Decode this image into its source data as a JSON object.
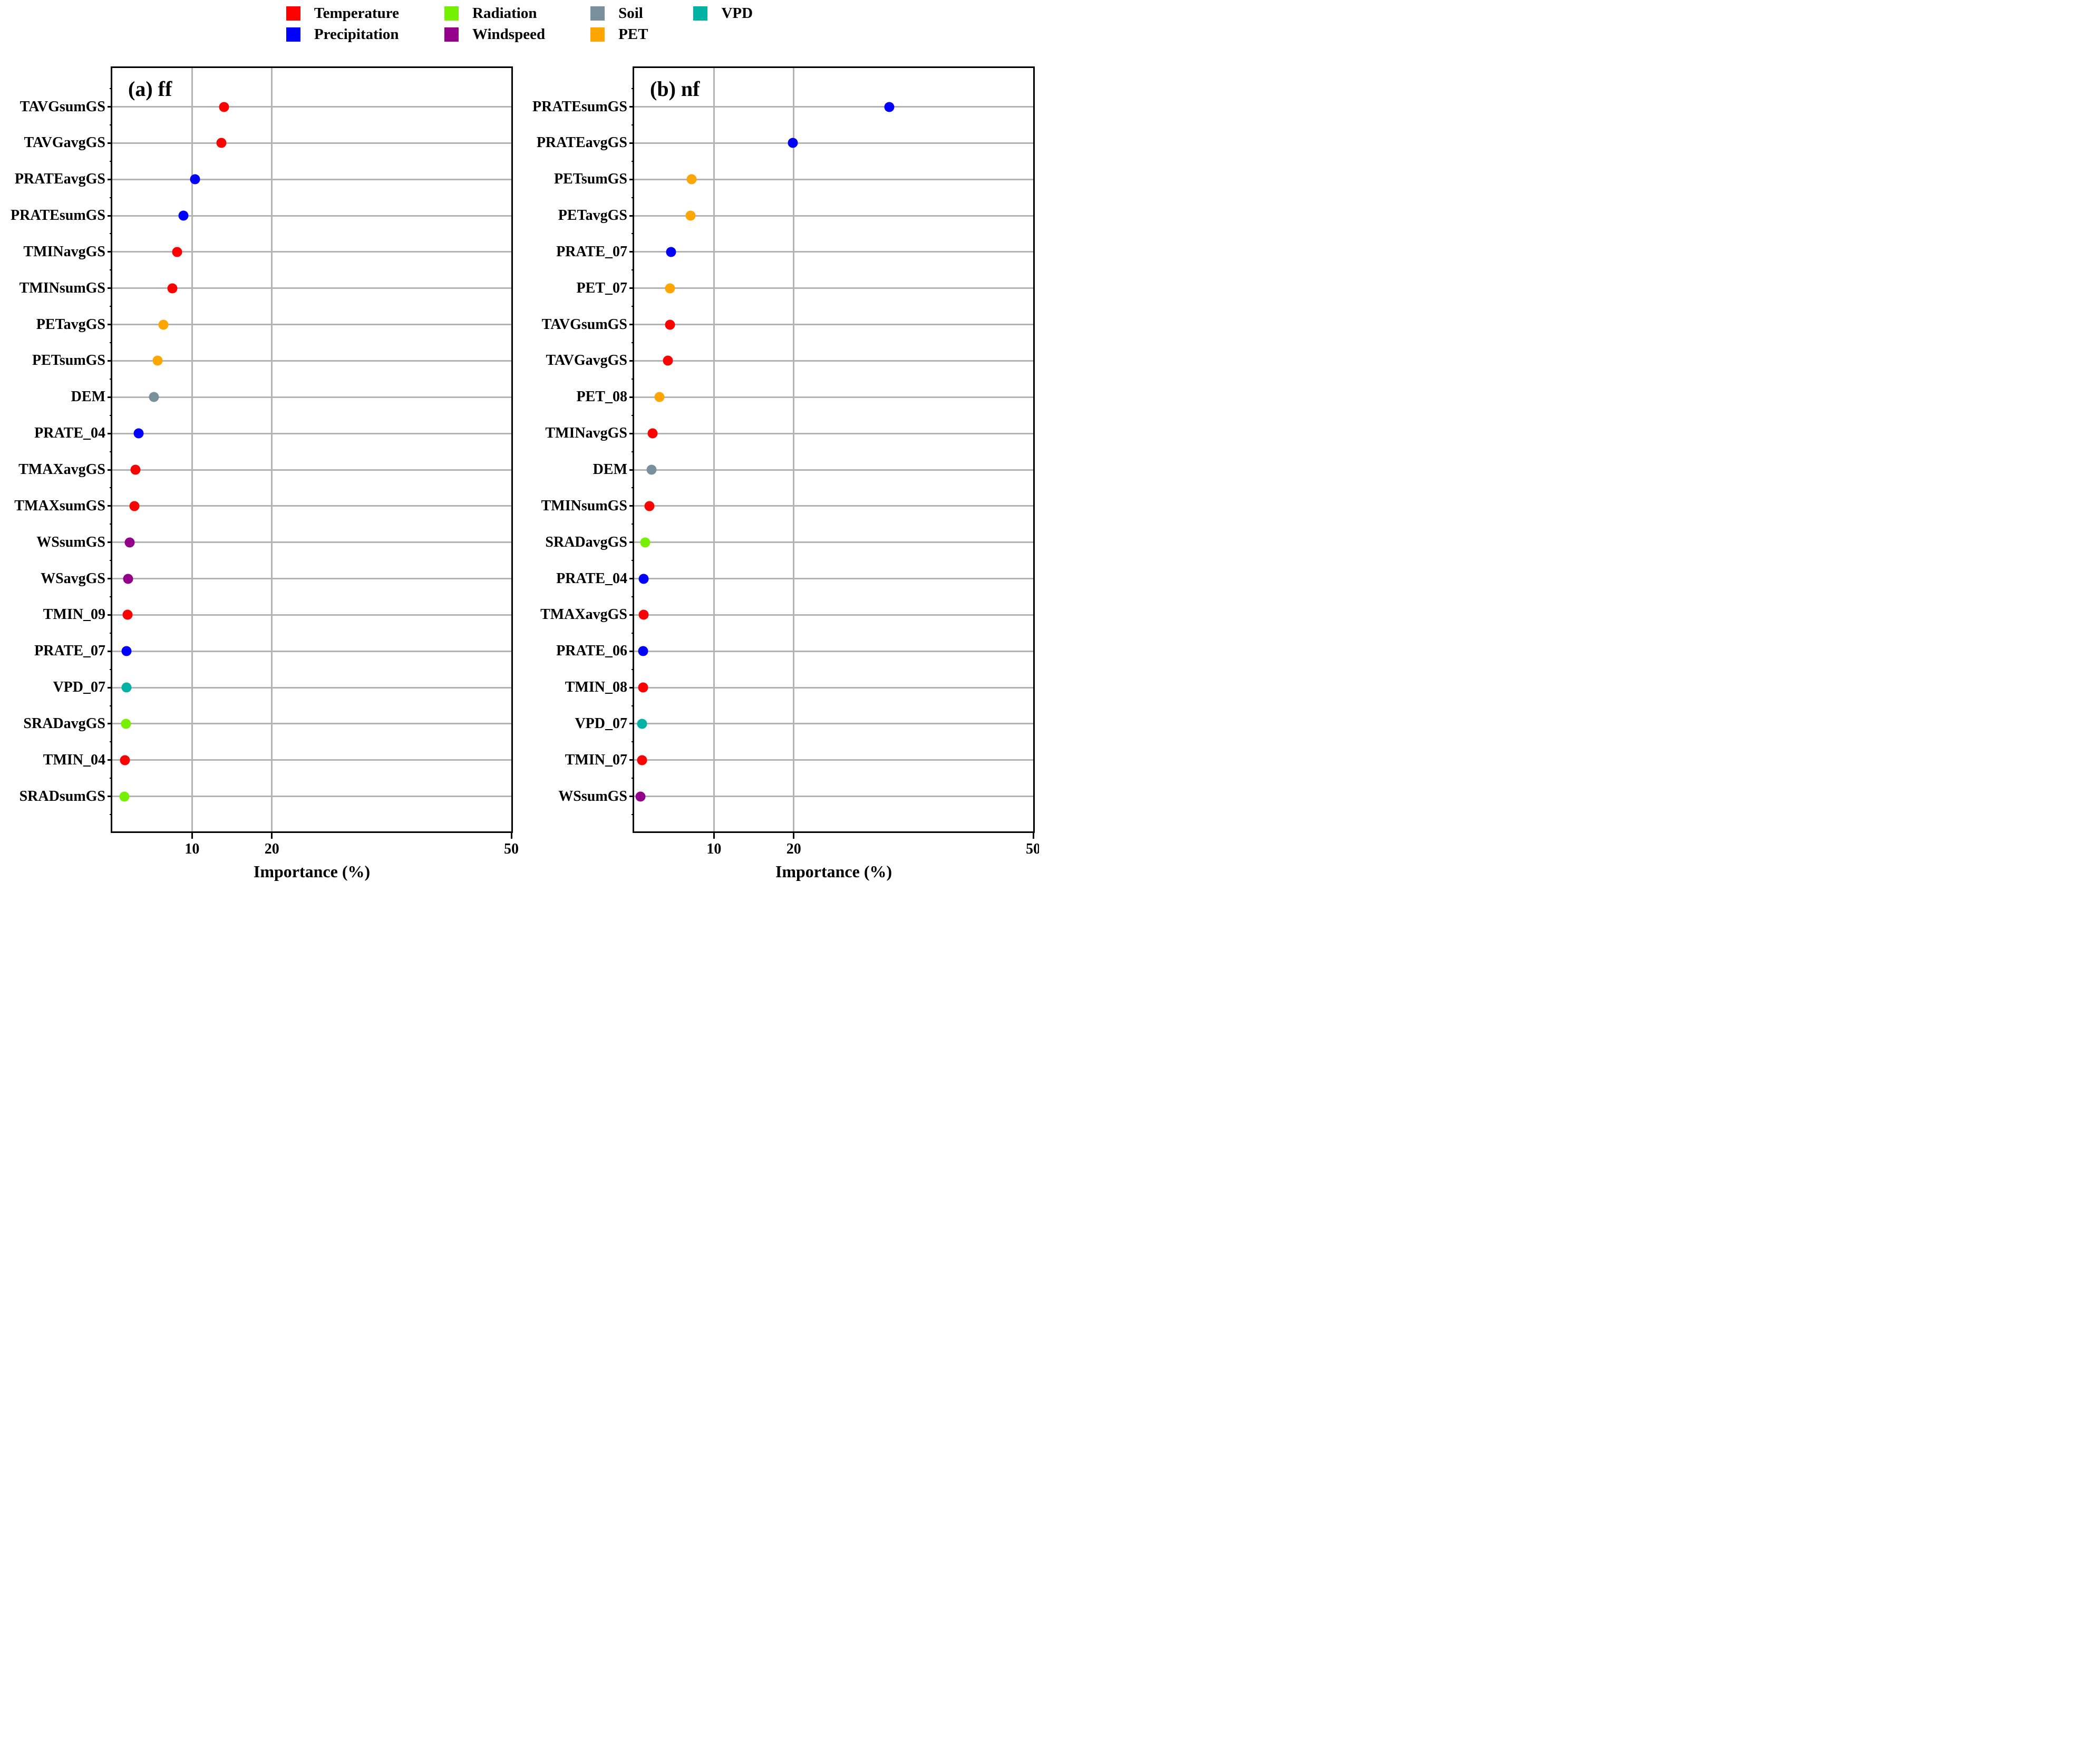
{
  "groups": {
    "Temperature": "#FF0000",
    "Precipitation": "#0000FF",
    "Radiation": "#74F000",
    "Windspeed": "#94008A",
    "Soil": "#78909C",
    "PET": "#FFA500",
    "VPD": "#00B2A2"
  },
  "gridline_color": "#B3B3B3",
  "legend": {
    "position": "top",
    "columns": [
      [
        "Temperature",
        "Precipitation"
      ],
      [
        "Radiation",
        "Windspeed"
      ],
      [
        "Soil",
        "PET"
      ],
      [
        "VPD"
      ]
    ]
  },
  "chart_data": [
    {
      "type": "scatter",
      "title": "(a) ff",
      "xlabel": "Importance (%)",
      "xlim": [
        0,
        50
      ],
      "xticks": [
        10,
        20,
        50
      ],
      "grid": true,
      "points": [
        {
          "label": "TAVGsumGS",
          "value": 14.0,
          "group": "Temperature"
        },
        {
          "label": "TAVGavgGS",
          "value": 13.7,
          "group": "Temperature"
        },
        {
          "label": "PRATEavgGS",
          "value": 10.4,
          "group": "Precipitation"
        },
        {
          "label": "PRATEsumGS",
          "value": 8.9,
          "group": "Precipitation"
        },
        {
          "label": "TMINavgGS",
          "value": 8.1,
          "group": "Temperature"
        },
        {
          "label": "TMINsumGS",
          "value": 7.5,
          "group": "Temperature"
        },
        {
          "label": "PETavgGS",
          "value": 6.4,
          "group": "PET"
        },
        {
          "label": "PETsumGS",
          "value": 5.7,
          "group": "PET"
        },
        {
          "label": "DEM",
          "value": 5.2,
          "group": "Soil"
        },
        {
          "label": "PRATE_04",
          "value": 3.3,
          "group": "Precipitation"
        },
        {
          "label": "TMAXavgGS",
          "value": 2.9,
          "group": "Temperature"
        },
        {
          "label": "TMAXsumGS",
          "value": 2.8,
          "group": "Temperature"
        },
        {
          "label": "WSsumGS",
          "value": 2.2,
          "group": "Windspeed"
        },
        {
          "label": "WSavgGS",
          "value": 2.0,
          "group": "Windspeed"
        },
        {
          "label": "TMIN_09",
          "value": 1.9,
          "group": "Temperature"
        },
        {
          "label": "PRATE_07",
          "value": 1.8,
          "group": "Precipitation"
        },
        {
          "label": "VPD_07",
          "value": 1.8,
          "group": "VPD"
        },
        {
          "label": "SRADavgGS",
          "value": 1.7,
          "group": "Radiation"
        },
        {
          "label": "TMIN_04",
          "value": 1.6,
          "group": "Temperature"
        },
        {
          "label": "SRADsumGS",
          "value": 1.5,
          "group": "Radiation"
        }
      ]
    },
    {
      "type": "scatter",
      "title": "(b) nf",
      "xlabel": "Importance (%)",
      "xlim": [
        0,
        50
      ],
      "xticks": [
        10,
        20,
        50
      ],
      "grid": true,
      "points": [
        {
          "label": "PRATEsumGS",
          "value": 32.0,
          "group": "Precipitation"
        },
        {
          "label": "PRATEavgGS",
          "value": 19.9,
          "group": "Precipitation"
        },
        {
          "label": "PETsumGS",
          "value": 7.2,
          "group": "PET"
        },
        {
          "label": "PETavgGS",
          "value": 7.1,
          "group": "PET"
        },
        {
          "label": "PRATE_07",
          "value": 4.6,
          "group": "Precipitation"
        },
        {
          "label": "PET_07",
          "value": 4.5,
          "group": "PET"
        },
        {
          "label": "TAVGsumGS",
          "value": 4.5,
          "group": "Temperature"
        },
        {
          "label": "TAVGavgGS",
          "value": 4.2,
          "group": "Temperature"
        },
        {
          "label": "PET_08",
          "value": 3.2,
          "group": "PET"
        },
        {
          "label": "TMINavgGS",
          "value": 2.3,
          "group": "Temperature"
        },
        {
          "label": "DEM",
          "value": 2.2,
          "group": "Soil"
        },
        {
          "label": "TMINsumGS",
          "value": 1.9,
          "group": "Temperature"
        },
        {
          "label": "SRADavgGS",
          "value": 1.4,
          "group": "Radiation"
        },
        {
          "label": "PRATE_04",
          "value": 1.2,
          "group": "Precipitation"
        },
        {
          "label": "TMAXavgGS",
          "value": 1.2,
          "group": "Temperature"
        },
        {
          "label": "PRATE_06",
          "value": 1.1,
          "group": "Precipitation"
        },
        {
          "label": "TMIN_08",
          "value": 1.1,
          "group": "Temperature"
        },
        {
          "label": "VPD_07",
          "value": 1.0,
          "group": "VPD"
        },
        {
          "label": "TMIN_07",
          "value": 1.0,
          "group": "Temperature"
        },
        {
          "label": "WSsumGS",
          "value": 0.8,
          "group": "Windspeed"
        }
      ]
    }
  ]
}
